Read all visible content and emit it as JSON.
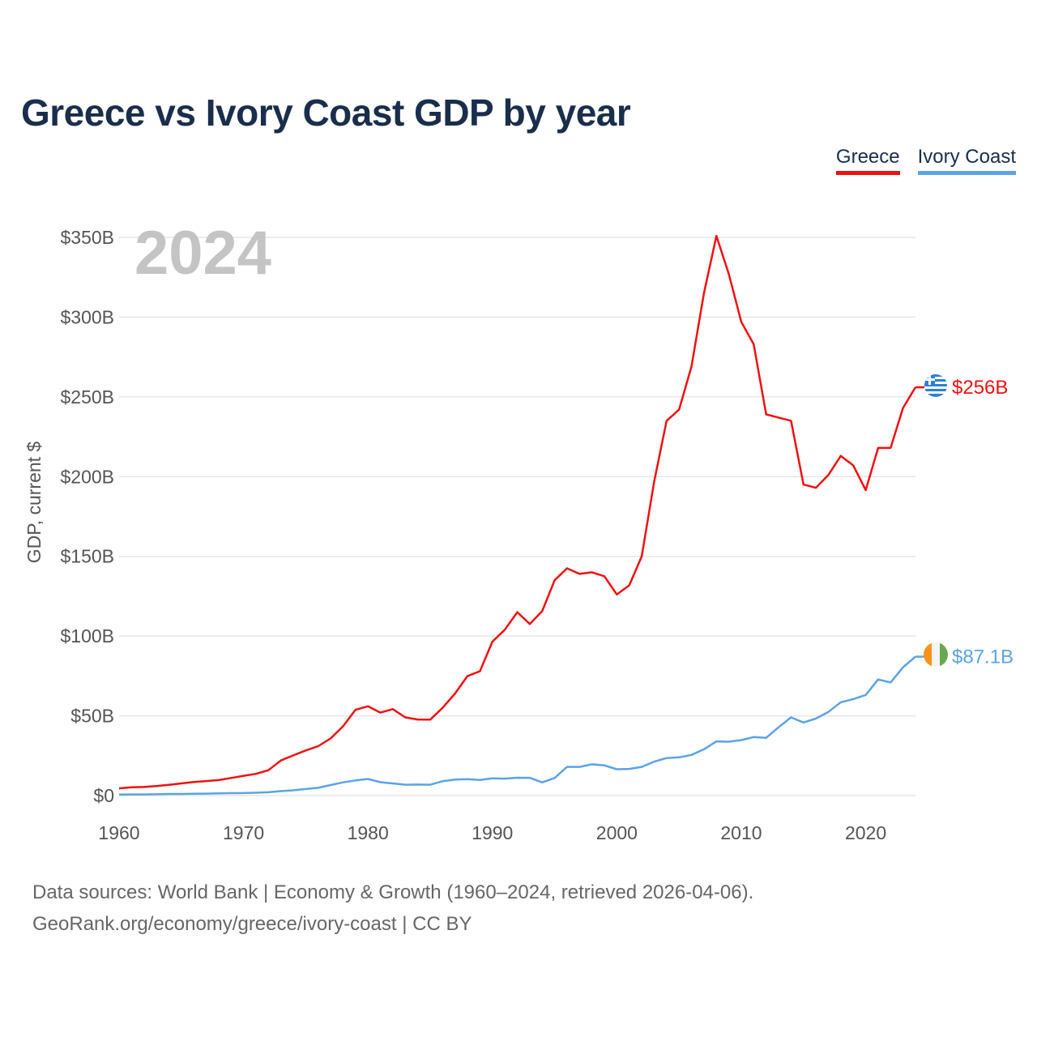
{
  "title": "Greece vs Ivory Coast GDP by year",
  "legend": {
    "greece": "Greece",
    "ivory_coast": "Ivory Coast"
  },
  "year_watermark": "2024",
  "footer": {
    "line1": "Data sources: World Bank | Economy & Growth (1960–2024, retrieved 2026-04-06).",
    "line2": "GeoRank.org/economy/greece/ivory-coast | CC BY"
  },
  "colors": {
    "greece": "#ee1111",
    "ivory_coast": "#5ba3e6",
    "grid": "#e6e6e6",
    "title": "#1a2e4c"
  },
  "chart_data": {
    "type": "line",
    "title": "Greece vs Ivory Coast GDP by year",
    "xlabel": "",
    "ylabel": "GDP, current $",
    "xlim": [
      1960,
      2024
    ],
    "ylim": [
      0,
      350
    ],
    "y_unit": "billion USD",
    "y_ticks": [
      0,
      50,
      100,
      150,
      200,
      250,
      300,
      350
    ],
    "y_tick_labels": [
      "$0",
      "$50B",
      "$100B",
      "$150B",
      "$200B",
      "$250B",
      "$300B",
      "$350B"
    ],
    "x_ticks": [
      1960,
      1970,
      1980,
      1990,
      2000,
      2010,
      2020
    ],
    "x_tick_labels": [
      "1960",
      "1970",
      "1980",
      "1990",
      "2000",
      "2010",
      "2020"
    ],
    "legend_position": "top-right",
    "grid": true,
    "series": [
      {
        "name": "Greece",
        "end_label": "$256B",
        "points": [
          [
            1960,
            4.5
          ],
          [
            1961,
            5.2
          ],
          [
            1962,
            5.4
          ],
          [
            1963,
            6.0
          ],
          [
            1964,
            6.7
          ],
          [
            1965,
            7.6
          ],
          [
            1966,
            8.5
          ],
          [
            1967,
            9.1
          ],
          [
            1968,
            9.7
          ],
          [
            1969,
            11.0
          ],
          [
            1970,
            12.4
          ],
          [
            1971,
            13.6
          ],
          [
            1972,
            15.9
          ],
          [
            1973,
            22.0
          ],
          [
            1974,
            25.2
          ],
          [
            1975,
            28.3
          ],
          [
            1976,
            31.0
          ],
          [
            1977,
            35.8
          ],
          [
            1978,
            43.5
          ],
          [
            1979,
            53.8
          ],
          [
            1980,
            56.0
          ],
          [
            1981,
            52.0
          ],
          [
            1982,
            54.2
          ],
          [
            1983,
            49.0
          ],
          [
            1984,
            47.7
          ],
          [
            1985,
            47.6
          ],
          [
            1986,
            55.0
          ],
          [
            1987,
            64.0
          ],
          [
            1988,
            75.0
          ],
          [
            1989,
            78.0
          ],
          [
            1990,
            96.5
          ],
          [
            1991,
            104.0
          ],
          [
            1992,
            115.0
          ],
          [
            1993,
            107.6
          ],
          [
            1994,
            115.6
          ],
          [
            1995,
            135.0
          ],
          [
            1996,
            142.5
          ],
          [
            1997,
            139.0
          ],
          [
            1998,
            140.0
          ],
          [
            1999,
            137.5
          ],
          [
            2000,
            126.1
          ],
          [
            2001,
            131.8
          ],
          [
            2002,
            150.0
          ],
          [
            2003,
            197.0
          ],
          [
            2004,
            235.0
          ],
          [
            2005,
            242.0
          ],
          [
            2006,
            269.0
          ],
          [
            2007,
            315.0
          ],
          [
            2008,
            350.9
          ],
          [
            2009,
            327.0
          ],
          [
            2010,
            297.0
          ],
          [
            2011,
            283.0
          ],
          [
            2012,
            239.0
          ],
          [
            2013,
            237.0
          ],
          [
            2014,
            235.0
          ],
          [
            2015,
            195.0
          ],
          [
            2016,
            193.0
          ],
          [
            2017,
            201.0
          ],
          [
            2018,
            213.0
          ],
          [
            2019,
            207.0
          ],
          [
            2020,
            191.5
          ],
          [
            2021,
            218.0
          ],
          [
            2022,
            218.0
          ],
          [
            2023,
            243.0
          ],
          [
            2024,
            256.0
          ]
        ]
      },
      {
        "name": "Ivory Coast",
        "end_label": "$87.1B",
        "points": [
          [
            1960,
            0.6
          ],
          [
            1961,
            0.7
          ],
          [
            1962,
            0.7
          ],
          [
            1963,
            0.8
          ],
          [
            1964,
            1.0
          ],
          [
            1965,
            1.0
          ],
          [
            1966,
            1.1
          ],
          [
            1967,
            1.2
          ],
          [
            1968,
            1.4
          ],
          [
            1969,
            1.5
          ],
          [
            1970,
            1.6
          ],
          [
            1971,
            1.8
          ],
          [
            1972,
            2.1
          ],
          [
            1973,
            2.8
          ],
          [
            1974,
            3.3
          ],
          [
            1975,
            4.1
          ],
          [
            1976,
            4.9
          ],
          [
            1977,
            6.6
          ],
          [
            1978,
            8.3
          ],
          [
            1979,
            9.5
          ],
          [
            1980,
            10.4
          ],
          [
            1981,
            8.4
          ],
          [
            1982,
            7.6
          ],
          [
            1983,
            6.8
          ],
          [
            1984,
            6.9
          ],
          [
            1985,
            6.8
          ],
          [
            1986,
            9.0
          ],
          [
            1987,
            10.0
          ],
          [
            1988,
            10.3
          ],
          [
            1989,
            9.8
          ],
          [
            1990,
            10.8
          ],
          [
            1991,
            10.6
          ],
          [
            1992,
            11.2
          ],
          [
            1993,
            11.1
          ],
          [
            1994,
            8.3
          ],
          [
            1995,
            11.0
          ],
          [
            1996,
            18.0
          ],
          [
            1997,
            18.0
          ],
          [
            1998,
            19.6
          ],
          [
            1999,
            18.9
          ],
          [
            2000,
            16.5
          ],
          [
            2001,
            16.7
          ],
          [
            2002,
            18.0
          ],
          [
            2003,
            21.3
          ],
          [
            2004,
            23.5
          ],
          [
            2005,
            24.0
          ],
          [
            2006,
            25.5
          ],
          [
            2007,
            29.0
          ],
          [
            2008,
            34.0
          ],
          [
            2009,
            33.8
          ],
          [
            2010,
            34.8
          ],
          [
            2011,
            36.7
          ],
          [
            2012,
            36.2
          ],
          [
            2013,
            42.8
          ],
          [
            2014,
            49.0
          ],
          [
            2015,
            45.8
          ],
          [
            2016,
            48.3
          ],
          [
            2017,
            52.4
          ],
          [
            2018,
            58.5
          ],
          [
            2019,
            60.5
          ],
          [
            2020,
            63.1
          ],
          [
            2021,
            72.8
          ],
          [
            2022,
            70.9
          ],
          [
            2023,
            80.4
          ],
          [
            2024,
            87.1
          ]
        ]
      }
    ]
  }
}
